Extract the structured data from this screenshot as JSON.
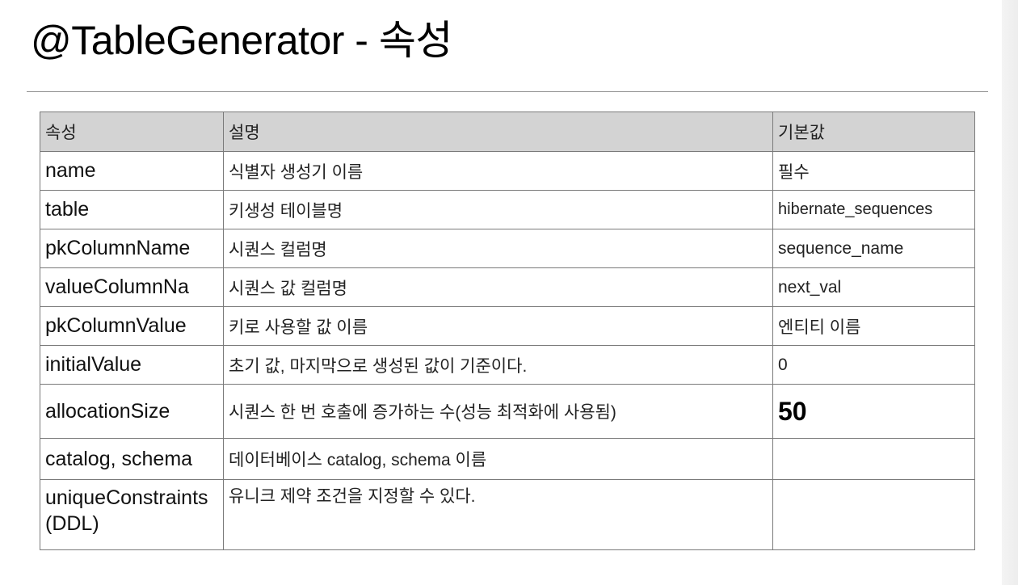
{
  "title": "@TableGenerator - 속성",
  "table": {
    "headers": [
      "속성",
      "설명",
      "기본값"
    ],
    "rows": [
      {
        "property": "name",
        "description": "식별자 생성기 이름",
        "default": "필수"
      },
      {
        "property": "table",
        "description": "키생성 테이블명",
        "default": "hibernate_sequences"
      },
      {
        "property": "pkColumnName",
        "description": "시퀀스 컬럼명",
        "default": "sequence_name"
      },
      {
        "property": "valueColumnNa",
        "description": "시퀀스 값 컬럼명",
        "default": "next_val"
      },
      {
        "property": "pkColumnValue",
        "description": "키로 사용할 값 이름",
        "default": "엔티티 이름"
      },
      {
        "property": "initialValue",
        "description": "초기 값, 마지막으로 생성된 값이 기준이다.",
        "default": "0"
      },
      {
        "property": "allocationSize",
        "description": "시퀀스 한 번 호출에 증가하는 수(성능 최적화에 사용됨)",
        "default": "50"
      },
      {
        "property": "catalog, schema",
        "description": "데이터베이스 catalog, schema 이름",
        "default": ""
      },
      {
        "property": "uniqueConstraints(DDL)",
        "description": "유니크 제약 조건을 지정할 수 있다.",
        "default": ""
      }
    ]
  }
}
